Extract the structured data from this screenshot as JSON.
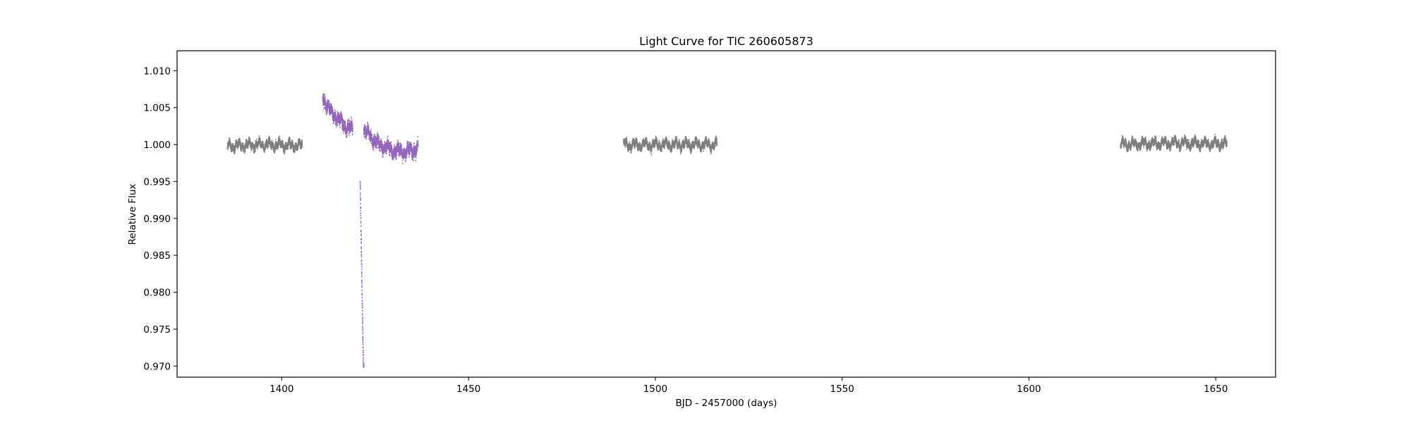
{
  "chart_data": {
    "type": "scatter",
    "title": "Light Curve for TIC 260605873",
    "xlabel": "BJD - 2457000 (days)",
    "ylabel": "Relative Flux",
    "xlim": [
      1372,
      1666
    ],
    "ylim": [
      0.9685,
      1.0127
    ],
    "xticks": [
      1400,
      1450,
      1500,
      1550,
      1600,
      1650
    ],
    "yticks": [
      0.97,
      0.975,
      0.98,
      0.985,
      0.99,
      0.995,
      1.0,
      1.005,
      1.01
    ],
    "ytick_labels": [
      "0.970",
      "0.975",
      "0.980",
      "0.985",
      "0.990",
      "0.995",
      "1.000",
      "1.005",
      "1.010"
    ],
    "grid": false,
    "colors": {
      "baseline": "#7f7f7f",
      "highlight": "#9467bd"
    },
    "series": [
      {
        "color": "#7f7f7f",
        "segments": [
          {
            "x_range": [
              1385.5,
              1405.5
            ],
            "mean": [
              [
                1385.5,
                0.9998
              ],
              [
                1395.5,
                1.0
              ],
              [
                1405.5,
                0.9998
              ]
            ],
            "scatter": 0.0006
          },
          {
            "x_range": [
              1491.5,
              1516.5
            ],
            "mean": [
              [
                1491.5,
                1.0
              ],
              [
                1504,
                1.0
              ],
              [
                1516.5,
                1.0
              ]
            ],
            "scatter": 0.0006
          },
          {
            "x_range": [
              1624.5,
              1653
            ],
            "mean": [
              [
                1624.5,
                1.0
              ],
              [
                1638,
                1.0002
              ],
              [
                1653,
                1.0001
              ]
            ],
            "scatter": 0.0006
          }
        ]
      },
      {
        "color": "#9467bd",
        "segments": [
          {
            "x_range": [
              1411,
              1419
            ],
            "mean": [
              [
                1411,
                1.0065
              ],
              [
                1413,
                1.0045
              ],
              [
                1415,
                1.0035
              ],
              [
                1417,
                1.0025
              ],
              [
                1419,
                1.002
              ]
            ],
            "scatter": 0.001
          },
          {
            "x_range": [
              1421,
              1422
            ],
            "mean": [
              [
                1421,
                0.995
              ],
              [
                1421.5,
                0.98
              ],
              [
                1421.9,
                0.9705
              ]
            ],
            "scatter": 0.0004
          },
          {
            "x_range": [
              1422,
              1436.5
            ],
            "mean": [
              [
                1422,
                1.002
              ],
              [
                1424,
                1.001
              ],
              [
                1426,
                1.0
              ],
              [
                1430,
                0.9992
              ],
              [
                1433,
                0.999
              ],
              [
                1436.5,
                0.9995
              ]
            ],
            "scatter": 0.001
          }
        ]
      }
    ]
  }
}
